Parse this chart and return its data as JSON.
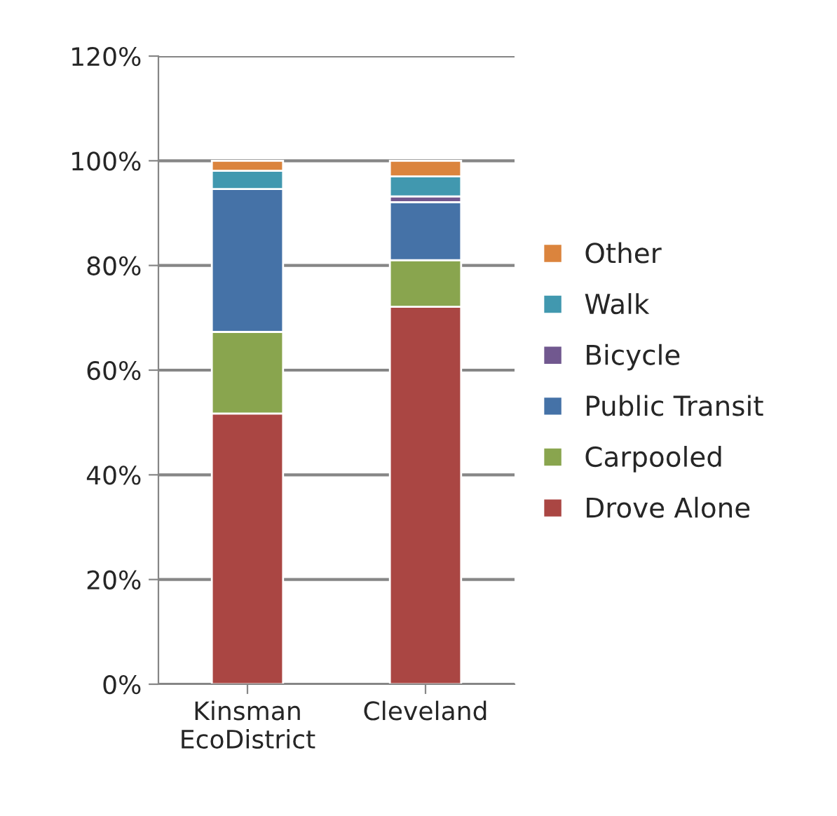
{
  "chart_data": {
    "type": "bar",
    "stacked": true,
    "categories": [
      "Kinsman\nEcoDistrict",
      "Cleveland"
    ],
    "series": [
      {
        "name": "Drove Alone",
        "color": "#aa4643",
        "values": [
          51.7,
          72.1
        ]
      },
      {
        "name": "Carpooled",
        "color": "#89a54e",
        "values": [
          15.6,
          8.9
        ]
      },
      {
        "name": "Public Transit",
        "color": "#4572a7",
        "values": [
          27.3,
          11.1
        ]
      },
      {
        "name": "Bicycle",
        "color": "#71588f",
        "values": [
          0,
          1.1
        ]
      },
      {
        "name": "Walk",
        "color": "#4198af",
        "values": [
          3.5,
          3.8
        ]
      },
      {
        "name": "Other",
        "color": "#db843d",
        "values": [
          1.9,
          3.0
        ]
      }
    ],
    "ylim": [
      0,
      120
    ],
    "yticks": [
      {
        "value": 0,
        "label": "0%"
      },
      {
        "value": 20,
        "label": "20%"
      },
      {
        "value": 40,
        "label": "40%"
      },
      {
        "value": 60,
        "label": "60%"
      },
      {
        "value": 80,
        "label": "80%"
      },
      {
        "value": 100,
        "label": "100%"
      },
      {
        "value": 120,
        "label": "120%"
      }
    ],
    "grid": "y",
    "legend": "right"
  }
}
